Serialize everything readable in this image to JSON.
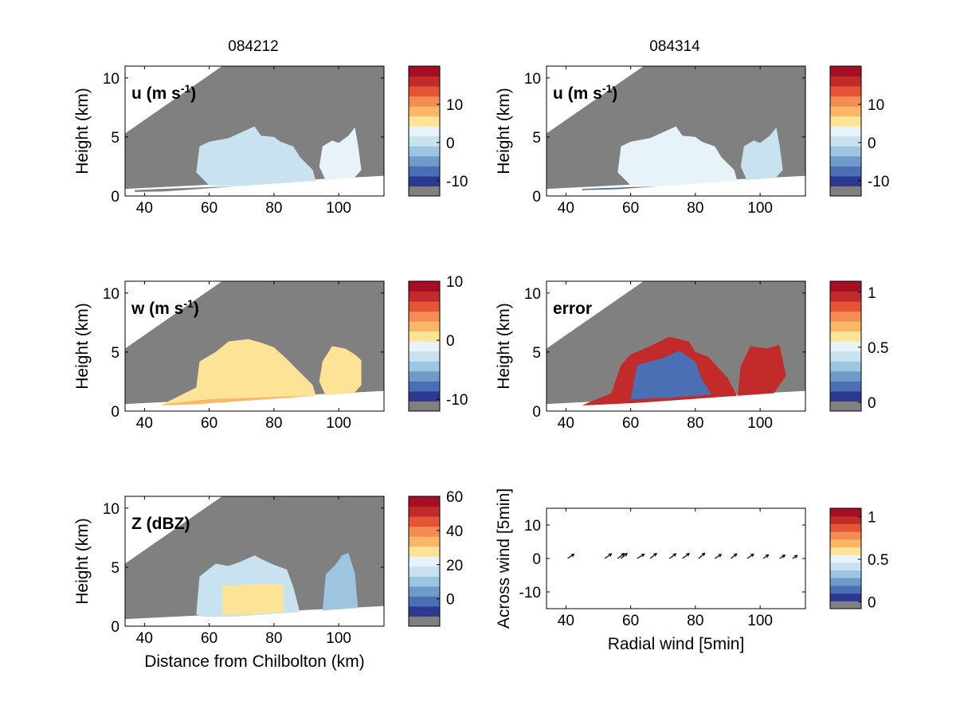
{
  "figure": {
    "column_titles": [
      "084212",
      "084314"
    ]
  },
  "palette": {
    "colormap": [
      "#808080",
      "#2b3990",
      "#4a6fb4",
      "#6e9bc9",
      "#9ec5df",
      "#c8e3ef",
      "#e7f3f8",
      "#fde395",
      "#fbb766",
      "#f48c54",
      "#e35535",
      "#c32b2b",
      "#a50f26"
    ],
    "terrain_gray": "#808080",
    "axes_color": "#000000"
  },
  "chart_data": [
    {
      "id": "u-084212",
      "type": "heatmap",
      "label": "u (m s-1)",
      "label_main": "u (m s",
      "label_sup": "-1",
      "label_close": ")",
      "xlim": [
        34,
        114
      ],
      "ylim": [
        0,
        11
      ],
      "xticks": [
        40,
        60,
        80,
        100
      ],
      "yticks": [
        0,
        5,
        10
      ],
      "xlabel": "",
      "ylabel": "Height (km)",
      "colorbar": {
        "range": [
          -14,
          20
        ],
        "ticks": [
          -10,
          0,
          10
        ]
      },
      "echo_regions": [
        {
          "outline": [
            [
              56,
              2.0
            ],
            [
              57,
              4.2
            ],
            [
              60,
              4.6
            ],
            [
              66,
              4.9
            ],
            [
              70,
              5.4
            ],
            [
              74,
              5.9
            ],
            [
              76,
              5.1
            ],
            [
              80,
              5.0
            ],
            [
              82,
              4.6
            ],
            [
              86,
              4.2
            ],
            [
              88,
              3.3
            ],
            [
              92,
              2.2
            ],
            [
              93,
              1.2
            ],
            [
              74,
              0.8
            ],
            [
              60,
              0.9
            ]
          ],
          "value": 1
        },
        {
          "outline": [
            [
              94,
              2.5
            ],
            [
              95,
              4.2
            ],
            [
              98,
              4.7
            ],
            [
              100,
              4.5
            ],
            [
              103,
              5.1
            ],
            [
              105,
              5.8
            ],
            [
              106,
              4.3
            ],
            [
              107,
              2.2
            ],
            [
              104,
              1.3
            ],
            [
              96,
              1.3
            ]
          ],
          "value": 2
        }
      ],
      "strong_layer": {
        "outline": [
          [
            37,
            0.35
          ],
          [
            50,
            0.4
          ],
          [
            60,
            0.5
          ],
          [
            74,
            0.6
          ],
          [
            90,
            0.85
          ],
          [
            93,
            1.05
          ],
          [
            80,
            0.9
          ],
          [
            60,
            0.75
          ],
          [
            45,
            0.6
          ],
          [
            37,
            0.5
          ]
        ],
        "value": -12
      }
    },
    {
      "id": "u-084314",
      "type": "heatmap",
      "label": "u (m s-1)",
      "label_main": "u (m s",
      "label_sup": "-1",
      "label_close": ")",
      "xlim": [
        34,
        114
      ],
      "ylim": [
        0,
        11
      ],
      "xticks": [
        40,
        60,
        80,
        100
      ],
      "yticks": [
        0,
        5,
        10
      ],
      "xlabel": "",
      "ylabel": "Height (km)",
      "colorbar": {
        "range": [
          -14,
          20
        ],
        "ticks": [
          -10,
          0,
          10
        ]
      },
      "echo_regions": [
        {
          "outline": [
            [
              56,
              2.0
            ],
            [
              57,
              4.2
            ],
            [
              60,
              4.6
            ],
            [
              66,
              4.9
            ],
            [
              70,
              5.4
            ],
            [
              74,
              5.9
            ],
            [
              76,
              5.1
            ],
            [
              80,
              5.0
            ],
            [
              82,
              4.6
            ],
            [
              86,
              4.2
            ],
            [
              88,
              3.3
            ],
            [
              92,
              2.2
            ],
            [
              93,
              1.2
            ],
            [
              74,
              0.8
            ],
            [
              60,
              0.9
            ]
          ],
          "value": 2
        },
        {
          "outline": [
            [
              94,
              2.5
            ],
            [
              95,
              4.2
            ],
            [
              98,
              4.7
            ],
            [
              100,
              4.5
            ],
            [
              103,
              5.1
            ],
            [
              105,
              5.8
            ],
            [
              106,
              4.3
            ],
            [
              107,
              2.2
            ],
            [
              104,
              1.3
            ],
            [
              96,
              1.3
            ]
          ],
          "value": 1
        }
      ],
      "strong_layer": {
        "outline": [
          [
            45,
            0.5
          ],
          [
            60,
            0.6
          ],
          [
            74,
            0.6
          ],
          [
            85,
            0.8
          ],
          [
            80,
            0.9
          ],
          [
            60,
            0.75
          ],
          [
            45,
            0.6
          ]
        ],
        "value": -8
      }
    },
    {
      "id": "w-084212",
      "type": "heatmap",
      "label": "w (m s-1)",
      "label_main": "w (m s",
      "label_sup": "-1",
      "label_close": ")",
      "xlim": [
        34,
        114
      ],
      "ylim": [
        0,
        11
      ],
      "xticks": [
        40,
        60,
        80,
        100
      ],
      "yticks": [
        0,
        5,
        10
      ],
      "xlabel": "",
      "ylabel": "Height (km)",
      "colorbar": {
        "range": [
          -12,
          10
        ],
        "ticks": [
          -10,
          0,
          10
        ]
      },
      "echo_regions": [
        {
          "outline": [
            [
              45,
              0.5
            ],
            [
              56,
              2.0
            ],
            [
              57,
              4.2
            ],
            [
              62,
              5.0
            ],
            [
              66,
              5.9
            ],
            [
              72,
              6.1
            ],
            [
              76,
              5.8
            ],
            [
              80,
              5.4
            ],
            [
              84,
              4.4
            ],
            [
              88,
              3.3
            ],
            [
              92,
              2.2
            ],
            [
              93,
              1.2
            ],
            [
              70,
              0.8
            ],
            [
              48,
              0.5
            ]
          ],
          "value": 1
        },
        {
          "outline": [
            [
              94,
              2.5
            ],
            [
              95,
              4.2
            ],
            [
              98,
              5.5
            ],
            [
              102,
              5.3
            ],
            [
              105,
              4.8
            ],
            [
              107,
              4.3
            ],
            [
              107,
              2.2
            ],
            [
              104,
              1.3
            ],
            [
              96,
              1.3
            ]
          ],
          "value": 1
        }
      ],
      "strong_layer": {
        "outline": [
          [
            45,
            0.5
          ],
          [
            60,
            0.6
          ],
          [
            75,
            0.9
          ],
          [
            90,
            1.1
          ],
          [
            93,
            1.3
          ],
          [
            80,
            1.2
          ],
          [
            60,
            1.0
          ],
          [
            46,
            0.6
          ]
        ],
        "value": 2
      }
    },
    {
      "id": "error-084314",
      "type": "heatmap",
      "label": "error",
      "label_main": "error",
      "label_sup": "",
      "label_close": "",
      "xlim": [
        34,
        114
      ],
      "ylim": [
        0,
        11
      ],
      "xticks": [
        40,
        60,
        80,
        100
      ],
      "yticks": [
        0,
        5,
        10
      ],
      "xlabel": "",
      "ylabel": "Height (km)",
      "colorbar": {
        "range": [
          -0.08,
          1.1
        ],
        "ticks": [
          0,
          0.5,
          1
        ]
      },
      "echo_regions": [
        {
          "outline": [
            [
              45,
              0.5
            ],
            [
              54,
              1.5
            ],
            [
              57,
              3.9
            ],
            [
              60,
              4.8
            ],
            [
              66,
              5.5
            ],
            [
              72,
              6.3
            ],
            [
              78,
              5.9
            ],
            [
              80,
              5.0
            ],
            [
              84,
              4.6
            ],
            [
              90,
              2.8
            ],
            [
              93,
              1.2
            ],
            [
              70,
              0.8
            ],
            [
              47,
              0.5
            ]
          ],
          "value": 1.0
        },
        {
          "outline": [
            [
              93,
              1.2
            ],
            [
              94,
              3.8
            ],
            [
              97,
              5.5
            ],
            [
              102,
              5.3
            ],
            [
              106,
              5.6
            ],
            [
              108,
              3.0
            ],
            [
              104,
              1.4
            ],
            [
              96,
              1.3
            ]
          ],
          "value": 1.0
        }
      ],
      "strong_layer": {
        "outline": [
          [
            60,
            1.0
          ],
          [
            62,
            3.9
          ],
          [
            70,
            4.5
          ],
          [
            75,
            5.1
          ],
          [
            80,
            4.2
          ],
          [
            82,
            2.7
          ],
          [
            85,
            1.4
          ],
          [
            70,
            1.1
          ]
        ],
        "value": 0.15
      }
    },
    {
      "id": "Z-084212",
      "type": "heatmap",
      "label": "Z (dBZ)",
      "label_main": "Z (dBZ)",
      "label_sup": "",
      "label_close": "",
      "xlim": [
        34,
        114
      ],
      "ylim": [
        0,
        11
      ],
      "xticks": [
        40,
        60,
        80,
        100
      ],
      "yticks": [
        0,
        5,
        10
      ],
      "xlabel": "Distance from Chilbolton (km)",
      "ylabel": "Height (km)",
      "colorbar": {
        "range": [
          -16,
          60
        ],
        "ticks": [
          0,
          20,
          40,
          60
        ]
      },
      "echo_regions": [
        {
          "outline": [
            [
              56,
              1.0
            ],
            [
              57,
              4.2
            ],
            [
              62,
              5.3
            ],
            [
              66,
              5.1
            ],
            [
              70,
              5.5
            ],
            [
              74,
              6.0
            ],
            [
              76,
              5.7
            ],
            [
              80,
              5.2
            ],
            [
              84,
              4.8
            ],
            [
              86,
              3.3
            ],
            [
              88,
              1.2
            ],
            [
              70,
              0.8
            ],
            [
              58,
              0.8
            ]
          ],
          "value": 14
        },
        {
          "outline": [
            [
              95,
              1.2
            ],
            [
              96,
              4.4
            ],
            [
              99,
              5.2
            ],
            [
              101,
              6.0
            ],
            [
              103,
              6.2
            ],
            [
              105,
              4.5
            ],
            [
              106,
              1.4
            ],
            [
              100,
              1.3
            ]
          ],
          "value": 10
        }
      ],
      "strong_layer": {
        "outline": [
          [
            64,
            1.0
          ],
          [
            64,
            3.4
          ],
          [
            76,
            3.6
          ],
          [
            83,
            3.5
          ],
          [
            83,
            1.2
          ],
          [
            72,
            1.0
          ]
        ],
        "value": 28
      }
    },
    {
      "id": "wind-084314",
      "type": "scatter",
      "label": "",
      "xlim": [
        34,
        114
      ],
      "ylim": [
        -15,
        15
      ],
      "xticks": [
        40,
        60,
        80,
        100
      ],
      "yticks": [
        -10,
        0,
        10
      ],
      "xlabel": "Radial wind [5min]",
      "ylabel": "Across wind [5min]",
      "colorbar": {
        "range": [
          -0.08,
          1.1
        ],
        "ticks": [
          0,
          0.5,
          1
        ]
      },
      "arrows": [
        {
          "x": 40.5,
          "y": 0,
          "u": 2.0,
          "v": 1.3
        },
        {
          "x": 52,
          "y": 0,
          "u": 2.1,
          "v": 1.4
        },
        {
          "x": 56,
          "y": 0,
          "u": 2.0,
          "v": 1.5
        },
        {
          "x": 57,
          "y": 0,
          "u": 1.9,
          "v": 1.5
        },
        {
          "x": 62,
          "y": 0,
          "u": 2.2,
          "v": 1.3
        },
        {
          "x": 66,
          "y": 0,
          "u": 2.0,
          "v": 1.5
        },
        {
          "x": 72,
          "y": 0,
          "u": 2.0,
          "v": 1.4
        },
        {
          "x": 76,
          "y": 0,
          "u": 2.1,
          "v": 1.5
        },
        {
          "x": 81,
          "y": 0,
          "u": 1.9,
          "v": 1.6
        },
        {
          "x": 86,
          "y": 0,
          "u": 2.0,
          "v": 1.2
        },
        {
          "x": 91,
          "y": 0,
          "u": 1.8,
          "v": 1.4
        },
        {
          "x": 96,
          "y": 0,
          "u": 2.0,
          "v": 1.3
        },
        {
          "x": 101,
          "y": 0,
          "u": 1.6,
          "v": 1.1
        },
        {
          "x": 106,
          "y": 0,
          "u": 1.7,
          "v": 1.0
        },
        {
          "x": 110,
          "y": 0,
          "u": 1.5,
          "v": 0.9
        }
      ]
    }
  ]
}
